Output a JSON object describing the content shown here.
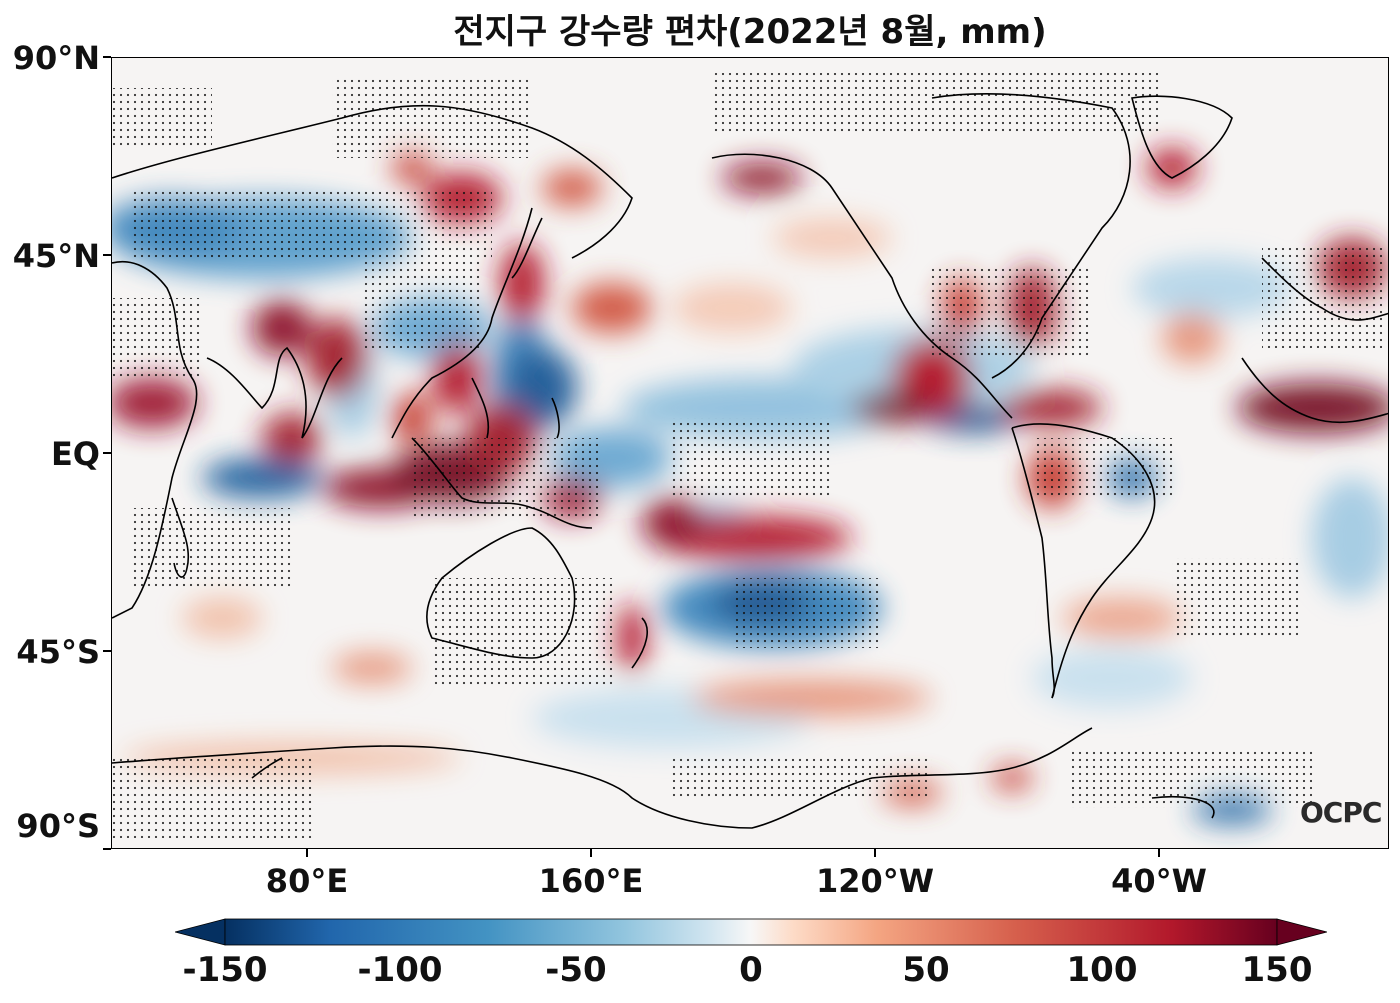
{
  "title": "전지구 강수량 편차(2022년 8월, mm)",
  "map": {
    "lat_ticks": [
      "90°N",
      "45°N",
      "EQ",
      "45°S",
      "90°S"
    ],
    "lon_ticks": [
      "80°E",
      "160°E",
      "120°W",
      "40°W"
    ],
    "lon_range_deg": [
      25,
      385
    ],
    "lat_range_deg": [
      -90,
      90
    ],
    "stippling": "significant anomaly (dots)",
    "coastlines": true
  },
  "colorbar": {
    "colormap": "RdBu_r",
    "min": -150,
    "max": 150,
    "extend": "both",
    "tick_labels": [
      "-150",
      "-100",
      "-50",
      "0",
      "50",
      "100",
      "150"
    ],
    "colors": {
      "neg_max": "#053061",
      "neg_mid": "#4393c3",
      "neutral": "#f7f7f7",
      "pos_mid": "#d6604d",
      "pos_max": "#67001f"
    }
  },
  "watermark": "OCPC"
}
